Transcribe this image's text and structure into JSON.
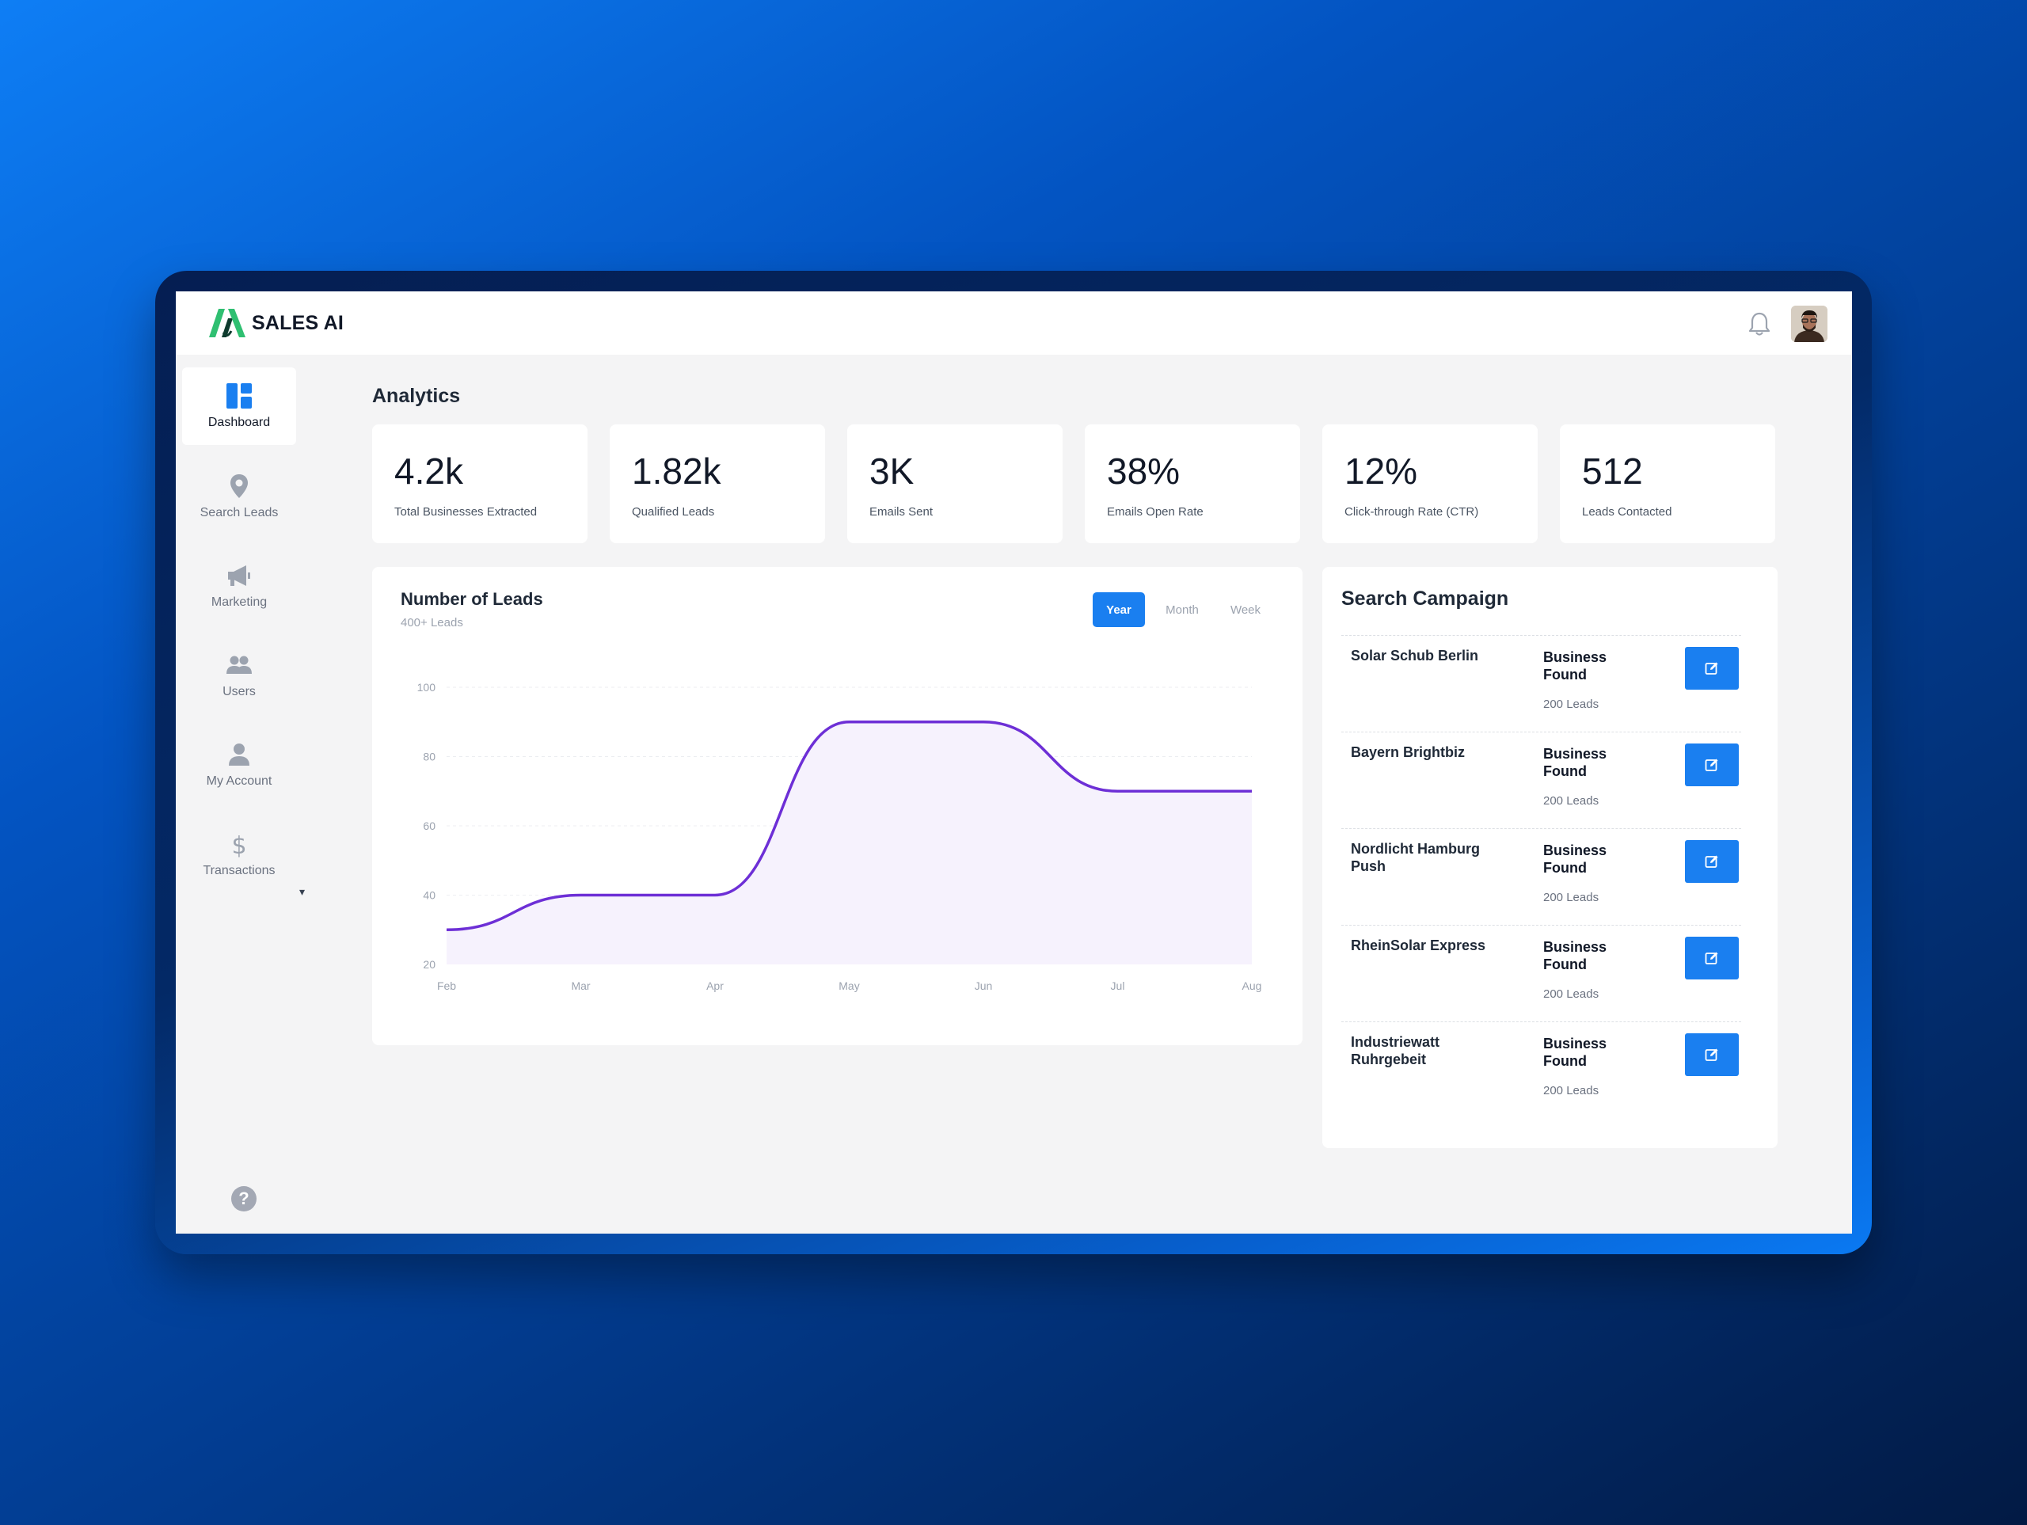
{
  "app": {
    "name": "SALES AI"
  },
  "sidebar": {
    "items": [
      {
        "label": "Dashboard",
        "icon": "dashboard-icon",
        "active": true
      },
      {
        "label": "Search Leads",
        "icon": "map-pin-icon"
      },
      {
        "label": "Marketing",
        "icon": "megaphone-icon"
      },
      {
        "label": "Users",
        "icon": "users-icon"
      },
      {
        "label": "My Account",
        "icon": "user-icon"
      },
      {
        "label": "Transactions",
        "icon": "dollar-icon"
      }
    ],
    "caret": "▾",
    "help": "?"
  },
  "analytics": {
    "title": "Analytics",
    "stats": [
      {
        "value": "4.2k",
        "label": "Total Businesses Extracted"
      },
      {
        "value": "1.82k",
        "label": "Qualified Leads"
      },
      {
        "value": "3K",
        "label": "Emails Sent"
      },
      {
        "value": "38%",
        "label": "Emails Open Rate"
      },
      {
        "value": "12%",
        "label": "Click-through Rate (CTR)"
      },
      {
        "value": "512",
        "label": "Leads Contacted"
      }
    ]
  },
  "leads_chart": {
    "title": "Number of Leads",
    "subtitle": "400+ Leads",
    "tabs": [
      "Year",
      "Month",
      "Week"
    ],
    "active_tab": "Year"
  },
  "chart_data": {
    "type": "area",
    "title": "Number of Leads",
    "categories": [
      "Feb",
      "Mar",
      "Apr",
      "May",
      "Jun",
      "Jul",
      "Aug"
    ],
    "values": [
      30,
      40,
      40,
      90,
      90,
      70,
      70
    ],
    "ylim": [
      20,
      100
    ],
    "yticks": [
      20,
      40,
      60,
      80,
      100
    ],
    "grid": true,
    "line_color": "#6d2fd6",
    "fill_color": "#f6f2fd"
  },
  "campaign": {
    "title": "Search Campaign",
    "rows": [
      {
        "name": "Solar Schub Berlin",
        "status": "Business Found",
        "leads": "200 Leads"
      },
      {
        "name": "Bayern Brightbiz",
        "status": "Business Found",
        "leads": "200 Leads"
      },
      {
        "name": "Nordlicht Hamburg Push",
        "status": "Business Found",
        "leads": "200 Leads"
      },
      {
        "name": "RheinSolar Express",
        "status": "Business Found",
        "leads": "200 Leads"
      },
      {
        "name": "Industriewatt Ruhrgebeit",
        "status": "Business Found",
        "leads": "200 Leads"
      }
    ]
  },
  "colors": {
    "accent": "#1a7ff0",
    "logo_green": "#2fbf71",
    "logo_dark": "#0f3b2e"
  }
}
